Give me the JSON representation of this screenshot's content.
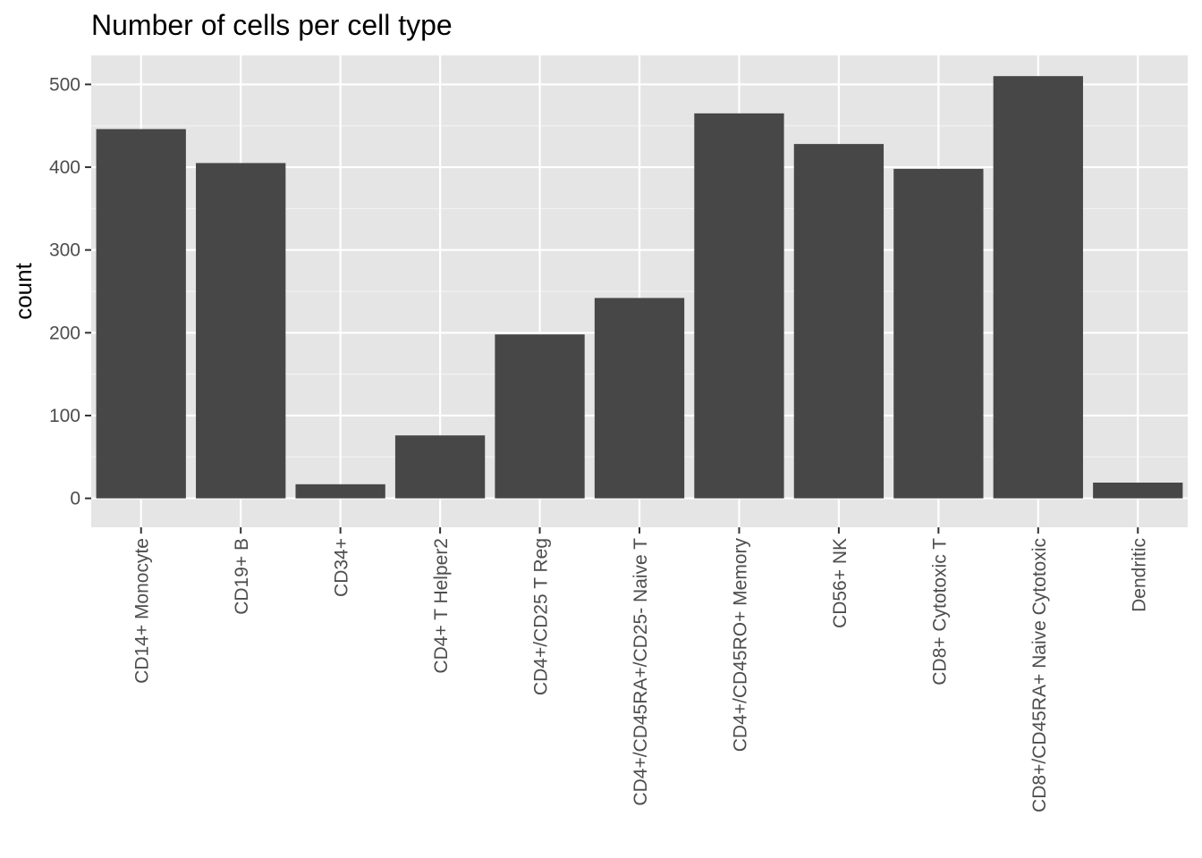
{
  "chart_data": {
    "type": "bar",
    "title": "Number of cells per cell type",
    "xlabel": "",
    "ylabel": "count",
    "categories": [
      "CD14+ Monocyte",
      "CD19+ B",
      "CD34+",
      "CD4+ T Helper2",
      "CD4+/CD25 T Reg",
      "CD4+/CD45RA+/CD25- Naive T",
      "CD4+/CD45RO+ Memory",
      "CD56+ NK",
      "CD8+ Cytotoxic T",
      "CD8+/CD45RA+ Naive Cytotoxic",
      "Dendritic"
    ],
    "values": [
      446,
      405,
      17,
      76,
      198,
      242,
      465,
      428,
      398,
      510,
      19
    ],
    "ylim": [
      -35,
      535
    ],
    "yticks": [
      0,
      100,
      200,
      300,
      400,
      500
    ],
    "grid": true,
    "legend": "none",
    "colors": {
      "bar": "#474747",
      "panel": "#e5e5e5",
      "grid_major": "#ffffff",
      "tick_text": "#4d4d4d",
      "tick_mark": "#333333"
    }
  }
}
